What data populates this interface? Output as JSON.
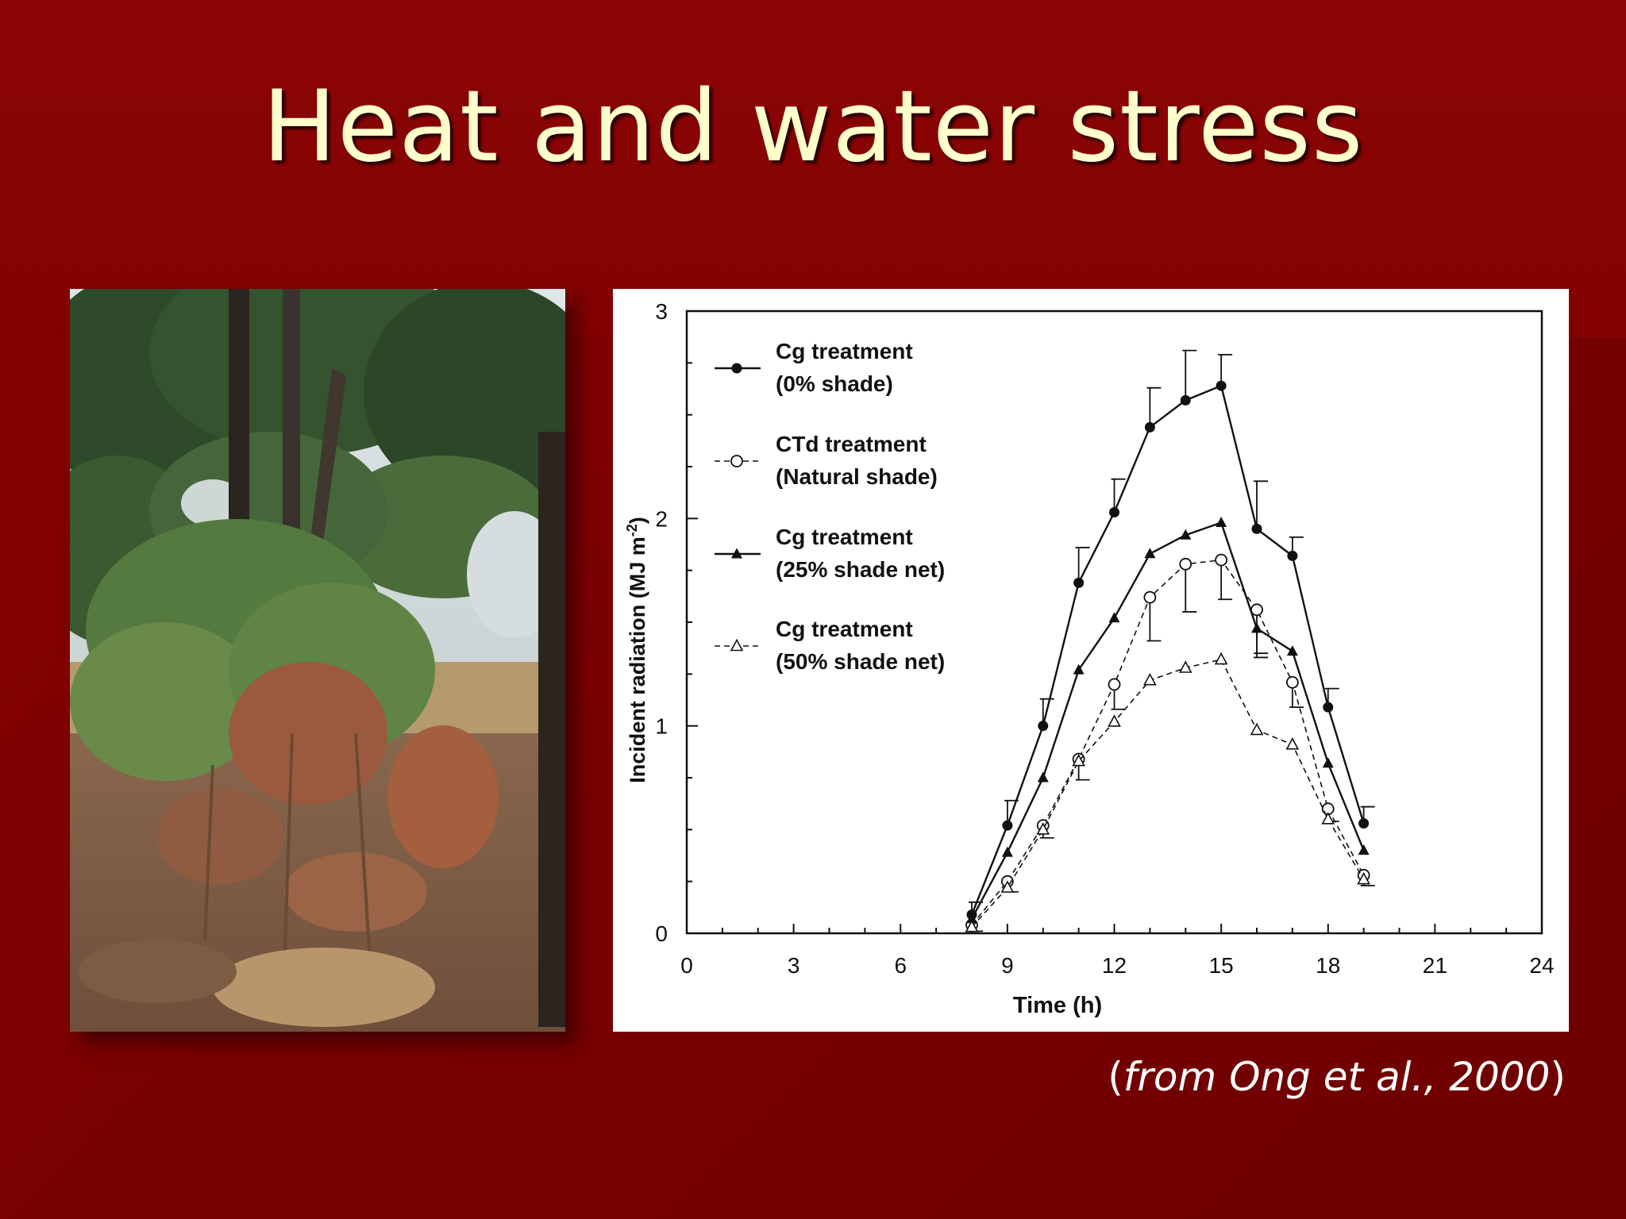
{
  "slide": {
    "title": "Heat and water stress",
    "citation": {
      "open": "(",
      "text": "from Ong et al., 2000",
      "close": ")"
    },
    "photo_label": "photo-of-stressed-crop-under-trees"
  },
  "colors": {
    "background": "#7a0000",
    "title": "#ffffcc",
    "chart_ink": "#111111"
  },
  "chart_data": {
    "type": "line",
    "title": "",
    "xlabel": "Time (h)",
    "ylabel_main": "Incident radiation (MJ m",
    "ylabel_sup": "-2",
    "ylabel_close": ")",
    "xlim": [
      0,
      24
    ],
    "ylim": [
      0,
      3
    ],
    "xticks": [
      0,
      3,
      6,
      9,
      12,
      15,
      18,
      21,
      24
    ],
    "yticks": [
      0,
      1,
      2,
      3
    ],
    "grid": false,
    "legend_position": "top-left",
    "x": [
      8,
      9,
      10,
      11,
      12,
      13,
      14,
      15,
      16,
      17,
      18,
      19
    ],
    "series": [
      {
        "name": "Cg treatment",
        "name_line2": "(0% shade)",
        "marker": "filled-circle",
        "dashed": false,
        "values": [
          0.09,
          0.52,
          1.0,
          1.69,
          2.03,
          2.44,
          2.57,
          2.64,
          1.95,
          1.82,
          1.09,
          0.53
        ],
        "error": [
          0.06,
          0.12,
          0.13,
          0.17,
          0.16,
          0.19,
          0.24,
          0.15,
          0.23,
          0.09,
          0.09,
          0.08
        ],
        "error_dir": "up"
      },
      {
        "name": "CTd treatment",
        "name_line2": "(Natural shade)",
        "marker": "open-circle",
        "dashed": true,
        "values": [
          0.04,
          0.25,
          0.52,
          0.84,
          1.2,
          1.62,
          1.78,
          1.8,
          1.56,
          1.21,
          0.6,
          0.28
        ],
        "error": [
          0.03,
          0.05,
          0.06,
          0.1,
          0.12,
          0.21,
          0.23,
          0.19,
          0.21,
          0.12,
          0.06,
          0.05
        ],
        "error_dir": "down"
      },
      {
        "name": "Cg treatment",
        "name_line2": "(25% shade net)",
        "marker": "filled-triangle",
        "dashed": false,
        "values": [
          0.07,
          0.39,
          0.75,
          1.27,
          1.52,
          1.83,
          1.92,
          1.98,
          1.47,
          1.36,
          0.82,
          0.4
        ],
        "error": [
          0,
          0,
          0,
          0,
          0,
          0,
          0,
          0,
          0.14,
          0,
          0,
          0
        ],
        "error_dir": "down"
      },
      {
        "name": "Cg treatment",
        "name_line2": "(50% shade net)",
        "marker": "open-triangle",
        "dashed": true,
        "values": [
          0.03,
          0.22,
          0.5,
          0.83,
          1.02,
          1.22,
          1.28,
          1.32,
          0.98,
          0.91,
          0.55,
          0.26
        ],
        "error": [
          0,
          0,
          0,
          0,
          0,
          0,
          0,
          0,
          0,
          0,
          0,
          0
        ],
        "error_dir": "down"
      }
    ]
  }
}
